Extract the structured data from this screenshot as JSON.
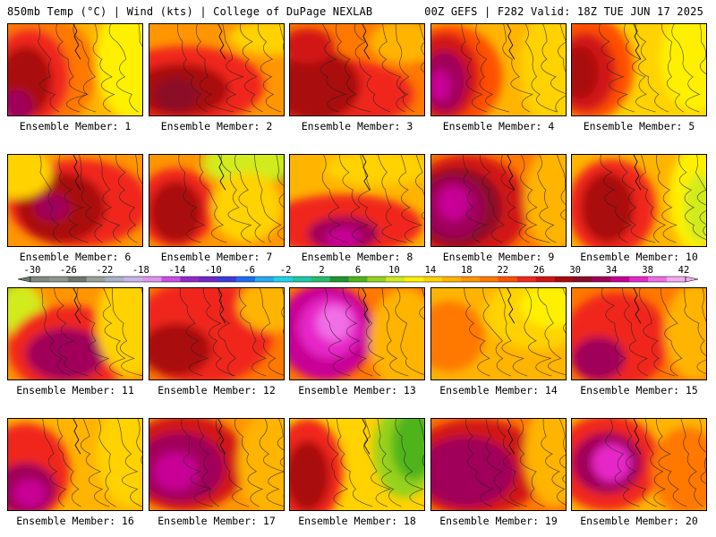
{
  "header": {
    "left": "850mb Temp (°C) | Wind (kts) | College of DuPage NEXLAB",
    "right": "00Z GEFS | F282 Valid: 18Z TUE JUN 17 2025"
  },
  "members": [
    {
      "label": "Ensemble Member: 1",
      "style": 0
    },
    {
      "label": "Ensemble Member: 2",
      "style": 1
    },
    {
      "label": "Ensemble Member: 3",
      "style": 2
    },
    {
      "label": "Ensemble Member: 4",
      "style": 3
    },
    {
      "label": "Ensemble Member: 5",
      "style": 4
    },
    {
      "label": "Ensemble Member: 6",
      "style": 5
    },
    {
      "label": "Ensemble Member: 7",
      "style": 6
    },
    {
      "label": "Ensemble Member: 8",
      "style": 7
    },
    {
      "label": "Ensemble Member: 9",
      "style": 8
    },
    {
      "label": "Ensemble Member: 10",
      "style": 9
    },
    {
      "label": "Ensemble Member: 11",
      "style": 10
    },
    {
      "label": "Ensemble Member: 12",
      "style": 11
    },
    {
      "label": "Ensemble Member: 13",
      "style": 12
    },
    {
      "label": "Ensemble Member: 14",
      "style": 13
    },
    {
      "label": "Ensemble Member: 15",
      "style": 14
    },
    {
      "label": "Ensemble Member: 16",
      "style": 15
    },
    {
      "label": "Ensemble Member: 17",
      "style": 16
    },
    {
      "label": "Ensemble Member: 18",
      "style": 17
    },
    {
      "label": "Ensemble Member: 19",
      "style": 18
    },
    {
      "label": "Ensemble Member: 20",
      "style": 19
    }
  ],
  "colorbar": {
    "ticks": [
      "-30",
      "-26",
      "-22",
      "-18",
      "-14",
      "-10",
      "-6",
      "-2",
      "2",
      "6",
      "10",
      "14",
      "18",
      "22",
      "26",
      "30",
      "34",
      "38",
      "42"
    ],
    "colors": [
      "#808a80",
      "#8e968e",
      "#6e776e",
      "#9aa09a",
      "#aab2c8",
      "#c8b4e6",
      "#dc96ee",
      "#c850e6",
      "#9628c8",
      "#6e28c8",
      "#3c3cdc",
      "#1e6ef0",
      "#28aaf0",
      "#1ed2e6",
      "#1ec8aa",
      "#28be6e",
      "#1e9632",
      "#50b41e",
      "#96d21e",
      "#d2eb1e",
      "#fff000",
      "#ffd200",
      "#ffb400",
      "#ff9600",
      "#ff7800",
      "#ff5000",
      "#f0281e",
      "#d21414",
      "#aa0a0a",
      "#8c0a28",
      "#a0005a",
      "#c80096",
      "#e628c8",
      "#f06ee6",
      "#f5aaf0"
    ]
  }
}
